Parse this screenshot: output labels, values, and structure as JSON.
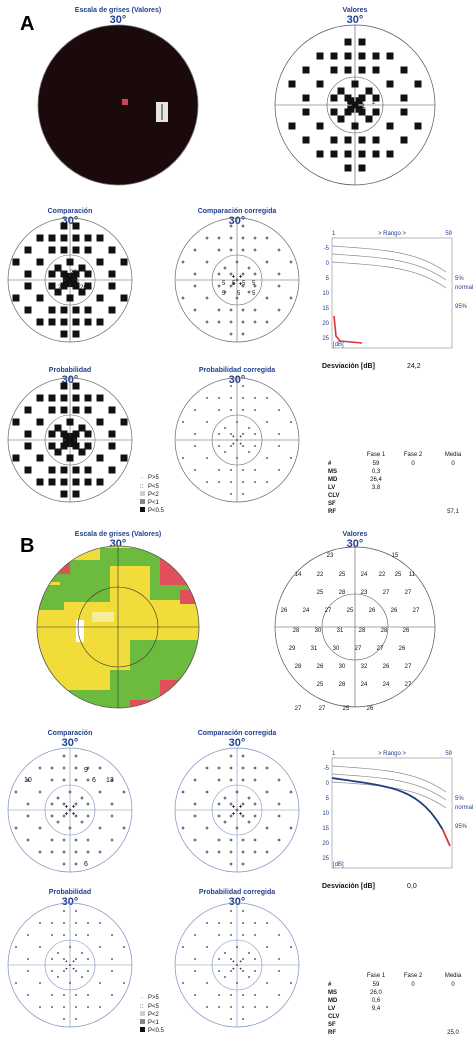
{
  "panels": [
    {
      "letter": "A",
      "titles": {
        "greyscale": "Escala de grises (Valores)",
        "values": "Valores",
        "comparison": "Comparación",
        "comparison_corrected": "Comparación corregida",
        "probability": "Probabilidad",
        "probability_corrected": "Probabilidad corregida"
      },
      "angle": "30°",
      "values_labels": [
        "1",
        "2",
        "11",
        "1"
      ],
      "comparison_labels": [
        "26",
        "29",
        "26",
        "26"
      ],
      "comparison_corrected_labels": [
        "5",
        "5",
        "5",
        "5",
        "5",
        "5",
        "5"
      ],
      "range_chart": {
        "left_tick": "1",
        "range_label": "> Rango >",
        "right_tick": "59",
        "y_ticks": [
          "-5",
          "0",
          "5",
          "10",
          "15",
          "20",
          "25"
        ],
        "y_unit": "[dB]",
        "curve_labels": [
          "5%",
          "normal",
          "95%"
        ],
        "deviation_label": "Desviación [dB]",
        "deviation_value": "24,2"
      },
      "legend": [
        "P>5",
        "P<5",
        "P<2",
        "P<1",
        "P<0.5"
      ],
      "stats": {
        "headers": [
          "Fase 1",
          "Fase 2",
          "Media"
        ],
        "rows": [
          {
            "label": "#",
            "f1": "59",
            "f2": "0",
            "m": "0"
          },
          {
            "label": "MS",
            "f1": "0,3",
            "f2": "",
            "m": ""
          },
          {
            "label": "MD",
            "f1": "26,4",
            "f2": "",
            "m": ""
          },
          {
            "label": "LV",
            "f1": "3,8",
            "f2": "",
            "m": ""
          },
          {
            "label": "CLV",
            "f1": "",
            "f2": "",
            "m": ""
          },
          {
            "label": "SF",
            "f1": "",
            "f2": "",
            "m": ""
          },
          {
            "label": "RF",
            "f1": "",
            "f2": "",
            "m": "57,1"
          }
        ]
      }
    },
    {
      "letter": "B",
      "titles": {
        "greyscale": "Escala de grises (Valores)",
        "values": "Valores",
        "comparison": "Comparación",
        "comparison_corrected": "Comparación corregida",
        "probability": "Probabilidad",
        "probability_corrected": "Probabilidad corregida"
      },
      "angle": "30°",
      "values_grid": [
        [
          "23",
          "",
          "15"
        ],
        [
          "14",
          "22",
          "25",
          "24",
          "22",
          "25",
          "11"
        ],
        [
          "25",
          "28",
          "23",
          "27",
          "27"
        ],
        [
          "26",
          "24",
          "27",
          "25",
          "26",
          "26",
          "27"
        ],
        [
          "28",
          "30",
          "31",
          "28",
          "28",
          "26"
        ],
        [
          "29",
          "31",
          "30",
          "27",
          "27",
          "26"
        ],
        [
          "28",
          "26",
          "30",
          "32",
          "26",
          "27"
        ],
        [
          "25",
          "28",
          "24",
          "24",
          "27"
        ],
        [
          "27",
          "27",
          "25",
          "26"
        ]
      ],
      "comparison_labels": [
        "9",
        "10",
        "6",
        "13",
        "6"
      ],
      "range_chart": {
        "left_tick": "1",
        "range_label": "> Rango >",
        "right_tick": "59",
        "y_ticks": [
          "-5",
          "0",
          "5",
          "10",
          "15",
          "20",
          "25"
        ],
        "y_unit": "[dB]",
        "curve_labels": [
          "5%",
          "normal",
          "95%"
        ],
        "deviation_label": "Desviación [dB]",
        "deviation_value": "0,0"
      },
      "legend": [
        "P>5",
        "P<5",
        "P<2",
        "P<1",
        "P<0.5"
      ],
      "stats": {
        "headers": [
          "Fase 1",
          "Fase 2",
          "Media"
        ],
        "rows": [
          {
            "label": "#",
            "f1": "59",
            "f2": "0",
            "m": "0"
          },
          {
            "label": "MS",
            "f1": "26,0",
            "f2": "",
            "m": ""
          },
          {
            "label": "MD",
            "f1": "0,6",
            "f2": "",
            "m": ""
          },
          {
            "label": "LV",
            "f1": "9,4",
            "f2": "",
            "m": ""
          },
          {
            "label": "CLV",
            "f1": "",
            "f2": "",
            "m": ""
          },
          {
            "label": "SF",
            "f1": "",
            "f2": "",
            "m": ""
          },
          {
            "label": "RF",
            "f1": "",
            "f2": "",
            "m": "25,0"
          }
        ]
      }
    }
  ],
  "colors": {
    "title_blue": "#1f3f8f",
    "dark_map": "#1a0a0c",
    "map_yellow": "#f1dc3a",
    "map_green": "#6dbb3e",
    "map_red": "#e0505a",
    "curve_red": "#e0303a",
    "curve_blue": "#1d3f80"
  }
}
